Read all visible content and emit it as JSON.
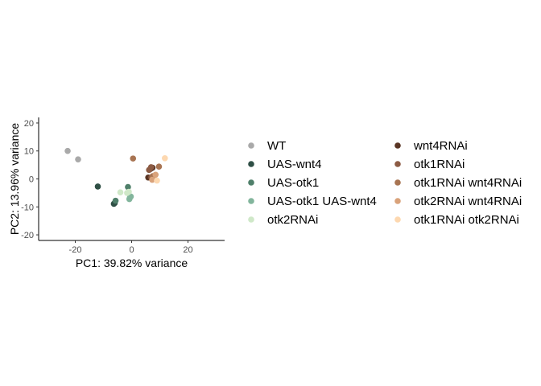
{
  "chart_data": {
    "type": "scatter",
    "xlabel": "PC1: 39.82% variance",
    "ylabel": "PC2: 13.96% variance",
    "xlim": [
      -33,
      33
    ],
    "ylim": [
      -22,
      22
    ],
    "x_ticks": [
      -20,
      0,
      20
    ],
    "y_ticks": [
      -20,
      -10,
      0,
      10,
      20
    ],
    "grid": false,
    "legend_position": "right",
    "series": [
      {
        "name": "WT",
        "color": "#a9a9a9",
        "points": [
          [
            -22.7,
            10.0
          ],
          [
            -19.0,
            7.0
          ]
        ]
      },
      {
        "name": "UAS-wnt4",
        "color": "#2f4f45",
        "points": [
          [
            -12.0,
            -2.7
          ],
          [
            -6.3,
            -8.9
          ],
          [
            -6.0,
            -8.6
          ]
        ]
      },
      {
        "name": "UAS-otk1",
        "color": "#4f7f6a",
        "points": [
          [
            -5.7,
            -7.8
          ],
          [
            -1.3,
            -2.9
          ]
        ]
      },
      {
        "name": "UAS-otk1 UAS-wnt4",
        "color": "#82b59c",
        "points": [
          [
            -0.6,
            -6.7
          ],
          [
            -0.3,
            -6.3
          ],
          [
            -0.8,
            -7.2
          ]
        ]
      },
      {
        "name": "otk2RNAi",
        "color": "#cfe8c8",
        "points": [
          [
            -4.0,
            -4.8
          ],
          [
            -1.6,
            -5.0
          ],
          [
            -1.0,
            -4.6
          ]
        ]
      },
      {
        "name": "wnt4RNAi",
        "color": "#5a3524",
        "points": [
          [
            5.9,
            0.5
          ],
          [
            6.6,
            3.5
          ],
          [
            7.4,
            4.0
          ]
        ]
      },
      {
        "name": "otk1RNAi",
        "color": "#8c5b44",
        "points": [
          [
            6.2,
            3.2
          ],
          [
            7.0,
            0.6
          ],
          [
            6.9,
            4.2
          ]
        ]
      },
      {
        "name": "otk1RNAi wnt4RNAi",
        "color": "#a87452",
        "points": [
          [
            0.5,
            7.3
          ],
          [
            9.7,
            4.4
          ],
          [
            7.5,
            1.0
          ]
        ]
      },
      {
        "name": "otk2RNAi wnt4RNAi",
        "color": "#d9a27a",
        "points": [
          [
            7.3,
            -0.3
          ],
          [
            8.5,
            1.5
          ]
        ]
      },
      {
        "name": "otk1RNAi otk2RNAi",
        "color": "#fdd8b0",
        "points": [
          [
            11.8,
            7.4
          ],
          [
            9.0,
            -0.6
          ]
        ]
      }
    ]
  }
}
